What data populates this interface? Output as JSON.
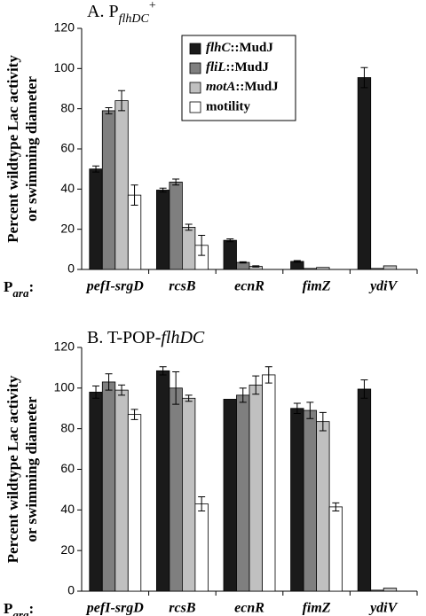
{
  "chart_data": [
    {
      "type": "bar",
      "title": [
        "A. P",
        "flhDC",
        "+"
      ],
      "title_style": [
        "normal",
        "sub",
        "sup"
      ],
      "y_label": [
        "Percent wildtype Lac activity",
        "or swimming diameter"
      ],
      "x_label": [
        "P",
        "ara",
        ":"
      ],
      "categories": [
        "pefI-srgD",
        "rcsB",
        "ecnR",
        "fimZ",
        "ydiV"
      ],
      "series": [
        {
          "name": "flhC::MudJ",
          "color": "#1a1a1a",
          "values": [
            50,
            39.5,
            14.5,
            4,
            95.5
          ],
          "errors": [
            1.5,
            1,
            0.7,
            0.4,
            5
          ]
        },
        {
          "name": "fliL::MudJ",
          "color": "#7f7f7f",
          "values": [
            79,
            43.5,
            3.5,
            0.5,
            0.5
          ],
          "errors": [
            1.5,
            1.5,
            0.3,
            null,
            null
          ]
        },
        {
          "name": "motA::MudJ",
          "color": "#c0c0c0",
          "values": [
            84,
            21,
            1.5,
            1,
            1.8
          ],
          "errors": [
            5,
            1.5,
            0.3,
            null,
            null
          ]
        },
        {
          "name": "motility",
          "color": "#ffffff",
          "values": [
            37,
            12,
            null,
            null,
            null
          ],
          "errors": [
            5,
            5,
            null,
            null,
            null
          ]
        }
      ],
      "ylim": [
        0,
        120
      ],
      "yticks": [
        0,
        20,
        40,
        60,
        80,
        100,
        120
      ],
      "legend": "top-center"
    },
    {
      "type": "bar",
      "title": [
        "B. T-POP-",
        "flhDC"
      ],
      "title_style": [
        "normal",
        "italic"
      ],
      "y_label": [
        "Percent wildtype Lac activity",
        "or swimming diameter"
      ],
      "x_label": [
        "P",
        "ara",
        ":"
      ],
      "categories": [
        "pefI-srgD",
        "rcsB",
        "ecnR",
        "fimZ",
        "ydiV"
      ],
      "series": [
        {
          "name": "flhC::MudJ",
          "color": "#1a1a1a",
          "values": [
            98,
            108.5,
            94.5,
            90,
            99.5
          ],
          "errors": [
            3,
            2,
            null,
            2.5,
            4.5
          ]
        },
        {
          "name": "fliL::MudJ",
          "color": "#7f7f7f",
          "values": [
            103,
            100,
            96.5,
            89,
            0.5
          ],
          "errors": [
            4,
            8,
            3.5,
            4,
            null
          ]
        },
        {
          "name": "motA::MudJ",
          "color": "#c0c0c0",
          "values": [
            99,
            95,
            101.5,
            83.5,
            1.5
          ],
          "errors": [
            2.5,
            1.5,
            4.5,
            4.5,
            null
          ]
        },
        {
          "name": "motility",
          "color": "#ffffff",
          "values": [
            87,
            43,
            106.5,
            41.5,
            null
          ],
          "errors": [
            2.5,
            3.5,
            4,
            2,
            null
          ]
        }
      ],
      "ylim": [
        0,
        120
      ],
      "yticks": [
        0,
        20,
        40,
        60,
        80,
        100,
        120
      ]
    }
  ]
}
